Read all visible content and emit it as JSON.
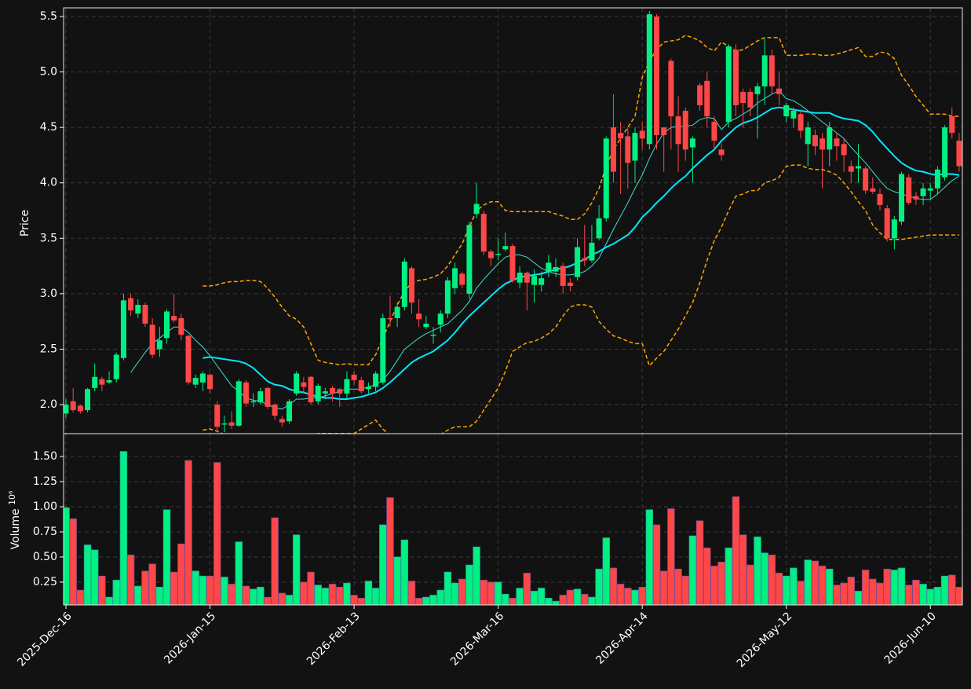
{
  "chart_data": {
    "type": "candlestick",
    "ylabel": "Price",
    "categories": [
      "2025-Dec-16",
      null,
      null,
      null,
      null,
      null,
      null,
      null,
      null,
      null,
      null,
      null,
      null,
      null,
      null,
      null,
      null,
      null,
      null,
      null,
      "2026-Jan-15",
      null,
      null,
      null,
      null,
      null,
      null,
      null,
      null,
      null,
      null,
      null,
      null,
      null,
      null,
      null,
      null,
      null,
      null,
      null,
      "2026-Feb-13",
      null,
      null,
      null,
      null,
      null,
      null,
      null,
      null,
      null,
      null,
      null,
      null,
      null,
      null,
      null,
      null,
      null,
      null,
      null,
      "2026-Mar-16",
      null,
      null,
      null,
      null,
      null,
      null,
      null,
      null,
      null,
      null,
      null,
      null,
      null,
      null,
      null,
      null,
      null,
      null,
      null,
      "2026-Apr-14",
      null,
      null,
      null,
      null,
      null,
      null,
      null,
      null,
      null,
      null,
      null,
      null,
      null,
      null,
      null,
      null,
      null,
      null,
      null,
      "2026-May-12",
      null,
      null,
      null,
      null,
      null,
      null,
      null,
      null,
      null,
      null,
      null,
      null,
      null,
      null,
      null,
      null,
      null,
      null,
      null,
      "2026-Jun-10",
      null,
      null,
      null,
      null
    ],
    "open": [
      1.92,
      2.03,
      1.99,
      1.95,
      2.15,
      2.23,
      2.2,
      2.23,
      2.42,
      2.96,
      2.82,
      2.9,
      2.72,
      2.5,
      2.6,
      2.8,
      2.78,
      2.62,
      2.18,
      2.2,
      2.27,
      2.0,
      1.82,
      1.84,
      1.81,
      2.2,
      2.02,
      2.02,
      2.15,
      2.0,
      1.87,
      1.85,
      2.1,
      2.2,
      2.25,
      2.03,
      2.1,
      2.15,
      2.14,
      2.1,
      2.27,
      2.22,
      2.14,
      2.16,
      2.2,
      2.78,
      2.78,
      2.88,
      3.23,
      2.82,
      2.7,
      2.62,
      2.72,
      2.82,
      3.05,
      3.18,
      3.0,
      3.72,
      3.72,
      3.38,
      3.35,
      3.4,
      3.43,
      3.1,
      3.19,
      3.08,
      3.08,
      3.2,
      3.2,
      3.25,
      3.1,
      3.15,
      3.32,
      3.3,
      3.5,
      3.68,
      4.5,
      4.45,
      4.42,
      4.2,
      4.47,
      4.35,
      5.5,
      4.5,
      5.1,
      4.6,
      4.65,
      4.32,
      4.88,
      4.92,
      4.55,
      4.3,
      4.55,
      5.2,
      4.82,
      4.82,
      4.8,
      4.87,
      5.15,
      4.85,
      4.6,
      4.58,
      4.62,
      4.35,
      4.43,
      4.4,
      4.3,
      4.4,
      4.35,
      4.15,
      4.13,
      4.13,
      3.95,
      3.9,
      3.77,
      3.5,
      3.65,
      4.05,
      3.88,
      3.88,
      3.93,
      3.95,
      4.05,
      4.6,
      4.38
    ],
    "high": [
      2.05,
      2.15,
      2.0,
      2.15,
      2.37,
      2.25,
      2.3,
      2.47,
      3.0,
      3.0,
      2.95,
      2.92,
      2.78,
      2.7,
      2.86,
      3.0,
      2.82,
      2.63,
      2.27,
      2.3,
      2.28,
      2.03,
      1.9,
      1.94,
      2.23,
      2.22,
      2.1,
      2.15,
      2.16,
      2.01,
      1.9,
      2.05,
      2.3,
      2.25,
      2.26,
      2.19,
      2.15,
      2.17,
      2.15,
      2.3,
      2.3,
      2.25,
      2.2,
      2.3,
      2.82,
      2.98,
      2.92,
      3.32,
      3.25,
      2.95,
      2.8,
      2.7,
      2.85,
      3.15,
      3.28,
      3.2,
      3.65,
      4.0,
      3.75,
      3.4,
      3.5,
      3.55,
      3.45,
      3.25,
      3.2,
      3.22,
      3.2,
      3.35,
      3.32,
      3.28,
      3.14,
      3.5,
      3.62,
      3.62,
      3.8,
      4.42,
      4.8,
      4.55,
      4.5,
      4.5,
      4.55,
      5.55,
      5.52,
      4.5,
      5.12,
      4.78,
      4.68,
      4.42,
      4.9,
      5.0,
      4.6,
      4.35,
      5.25,
      5.25,
      4.85,
      4.85,
      4.9,
      5.3,
      5.2,
      5.0,
      4.72,
      4.68,
      4.65,
      4.55,
      4.48,
      4.45,
      4.55,
      4.45,
      4.4,
      4.2,
      4.35,
      4.15,
      4.05,
      3.95,
      3.8,
      3.7,
      4.1,
      4.08,
      3.92,
      4.0,
      4.0,
      4.15,
      4.52,
      4.68,
      4.45
    ],
    "low": [
      1.88,
      1.93,
      1.92,
      1.93,
      2.12,
      2.12,
      2.19,
      2.2,
      2.4,
      2.8,
      2.78,
      2.7,
      2.42,
      2.43,
      2.55,
      2.74,
      2.58,
      2.18,
      2.15,
      2.12,
      2.1,
      1.75,
      1.75,
      1.78,
      1.8,
      1.98,
      1.98,
      2.0,
      1.96,
      1.86,
      1.8,
      1.83,
      2.08,
      2.1,
      2.0,
      2.0,
      2.05,
      2.03,
      1.98,
      2.05,
      2.18,
      2.1,
      2.1,
      2.12,
      2.18,
      2.7,
      2.7,
      2.85,
      2.82,
      2.7,
      2.68,
      2.55,
      2.65,
      2.78,
      3.0,
      3.05,
      2.95,
      3.68,
      3.35,
      3.25,
      3.3,
      3.38,
      3.1,
      3.05,
      2.85,
      2.92,
      3.02,
      3.15,
      3.15,
      3.0,
      3.02,
      3.12,
      3.25,
      3.28,
      3.48,
      3.65,
      4.0,
      3.9,
      3.95,
      4.0,
      4.3,
      4.3,
      4.3,
      4.1,
      4.3,
      4.1,
      4.2,
      4.0,
      4.65,
      4.5,
      4.3,
      4.2,
      4.5,
      4.6,
      4.5,
      4.6,
      4.4,
      4.7,
      4.8,
      4.7,
      4.55,
      4.5,
      4.4,
      4.15,
      4.25,
      3.95,
      4.15,
      4.2,
      4.1,
      4.0,
      4.0,
      3.9,
      3.9,
      3.75,
      3.47,
      3.4,
      3.62,
      3.8,
      3.8,
      3.8,
      3.85,
      3.9,
      4.02,
      4.4,
      4.1
    ],
    "close": [
      2.0,
      1.95,
      1.94,
      2.14,
      2.25,
      2.18,
      2.22,
      2.45,
      2.94,
      2.85,
      2.9,
      2.73,
      2.45,
      2.58,
      2.84,
      2.76,
      2.63,
      2.2,
      2.24,
      2.28,
      2.14,
      1.8,
      1.83,
      1.81,
      2.21,
      2.01,
      2.03,
      2.12,
      1.98,
      1.9,
      1.84,
      2.03,
      2.28,
      2.16,
      2.02,
      2.17,
      2.12,
      2.1,
      2.1,
      2.23,
      2.22,
      2.12,
      2.16,
      2.28,
      2.78,
      2.77,
      2.88,
      3.29,
      2.92,
      2.77,
      2.73,
      2.63,
      2.82,
      3.12,
      3.23,
      3.08,
      3.62,
      3.81,
      3.38,
      3.32,
      3.36,
      3.43,
      3.12,
      3.19,
      3.1,
      3.16,
      3.14,
      3.28,
      3.24,
      3.07,
      3.07,
      3.42,
      3.3,
      3.46,
      3.68,
      4.4,
      4.1,
      4.4,
      4.18,
      4.45,
      4.4,
      5.52,
      4.43,
      4.43,
      4.6,
      4.35,
      4.3,
      4.4,
      4.7,
      4.6,
      4.38,
      4.25,
      5.23,
      4.7,
      4.72,
      4.68,
      4.87,
      5.15,
      4.87,
      4.8,
      4.7,
      4.65,
      4.47,
      4.5,
      4.33,
      4.3,
      4.5,
      4.33,
      4.25,
      4.1,
      4.15,
      3.93,
      3.92,
      3.8,
      3.5,
      3.67,
      4.08,
      3.82,
      3.85,
      3.95,
      3.95,
      4.12,
      4.5,
      4.45,
      4.15
    ],
    "up_color": "#00f082",
    "down_color": "#ff4747",
    "ylim": [
      1.738,
      5.578
    ],
    "yticks": [
      {
        "value": 2,
        "label": "2.0"
      },
      2.5,
      {
        "value": 3,
        "label": "3.0"
      },
      3.5,
      {
        "value": 4,
        "label": "4.0"
      },
      4.5,
      {
        "value": 5,
        "label": "5.0"
      },
      5.5
    ],
    "grid": true,
    "overlays": [
      {
        "color": "#40e0d0",
        "width": 1,
        "dashed": false,
        "values": [
          null,
          null,
          null,
          null,
          null,
          null,
          null,
          null,
          null,
          2.29,
          2.38,
          2.47,
          2.55,
          2.6,
          2.65,
          2.7,
          2.7,
          2.65,
          2.58,
          2.52,
          2.44,
          2.35,
          2.26,
          2.17,
          2.12,
          2.06,
          2.04,
          2.03,
          2.0,
          1.97,
          1.96,
          2.0,
          2.05,
          2.05,
          2.06,
          2.06,
          2.08,
          2.1,
          2.12,
          2.14,
          2.14,
          2.14,
          2.16,
          2.18,
          2.22,
          2.3,
          2.4,
          2.5,
          2.55,
          2.6,
          2.64,
          2.67,
          2.7,
          2.73,
          2.79,
          2.85,
          2.93,
          3.05,
          3.13,
          3.2,
          3.27,
          3.33,
          3.35,
          3.35,
          3.33,
          3.28,
          3.23,
          3.2,
          3.18,
          3.17,
          3.17,
          3.18,
          3.2,
          3.25,
          3.32,
          3.45,
          3.58,
          3.7,
          3.82,
          3.95,
          4.07,
          4.22,
          4.35,
          4.45,
          4.5,
          4.51,
          4.51,
          4.52,
          4.57,
          4.59,
          4.58,
          4.48,
          4.55,
          4.58,
          4.62,
          4.66,
          4.72,
          4.76,
          4.8,
          4.83,
          4.76,
          4.74,
          4.7,
          4.65,
          4.6,
          4.55,
          4.5,
          4.45,
          4.4,
          4.32,
          4.25,
          4.18,
          4.1,
          4.02,
          3.95,
          3.92,
          3.9,
          3.88,
          3.86,
          3.85,
          3.85,
          3.9,
          3.96,
          4.02,
          4.06
        ]
      },
      {
        "color": "#00e8ff",
        "width": 2,
        "dashed": false,
        "values": [
          null,
          null,
          null,
          null,
          null,
          null,
          null,
          null,
          null,
          null,
          null,
          null,
          null,
          null,
          null,
          null,
          null,
          null,
          null,
          2.42,
          2.43,
          2.42,
          2.41,
          2.4,
          2.39,
          2.37,
          2.33,
          2.27,
          2.21,
          2.18,
          2.17,
          2.14,
          2.12,
          2.11,
          2.09,
          2.07,
          2.06,
          2.06,
          2.05,
          2.05,
          2.06,
          2.07,
          2.09,
          2.11,
          2.15,
          2.2,
          2.26,
          2.32,
          2.38,
          2.42,
          2.45,
          2.48,
          2.53,
          2.58,
          2.65,
          2.73,
          2.8,
          2.86,
          2.92,
          2.98,
          3.04,
          3.09,
          3.12,
          3.15,
          3.16,
          3.17,
          3.18,
          3.2,
          3.22,
          3.23,
          3.25,
          3.28,
          3.31,
          3.35,
          3.38,
          3.42,
          3.45,
          3.49,
          3.53,
          3.6,
          3.69,
          3.75,
          3.82,
          3.88,
          3.95,
          4.01,
          4.06,
          4.13,
          4.19,
          4.25,
          4.3,
          4.38,
          4.44,
          4.5,
          4.54,
          4.56,
          4.59,
          4.63,
          4.67,
          4.68,
          4.67,
          4.66,
          4.65,
          4.64,
          4.63,
          4.63,
          4.63,
          4.6,
          4.58,
          4.57,
          4.56,
          4.52,
          4.46,
          4.38,
          4.31,
          4.24,
          4.18,
          4.14,
          4.11,
          4.1,
          4.08,
          4.07,
          4.08,
          4.08,
          4.07
        ]
      },
      {
        "color": "#ffa500",
        "width": 1.5,
        "dashed": true,
        "values": [
          null,
          null,
          null,
          null,
          null,
          null,
          null,
          null,
          null,
          null,
          null,
          null,
          null,
          null,
          null,
          null,
          null,
          null,
          null,
          3.07,
          3.07,
          3.08,
          3.1,
          3.11,
          3.11,
          3.12,
          3.12,
          3.11,
          3.05,
          2.97,
          2.88,
          2.8,
          2.77,
          2.7,
          2.55,
          2.4,
          2.38,
          2.37,
          2.36,
          2.37,
          2.36,
          2.36,
          2.36,
          2.45,
          2.6,
          2.75,
          2.9,
          3.02,
          3.1,
          3.12,
          3.13,
          3.15,
          3.18,
          3.25,
          3.35,
          3.45,
          3.6,
          3.75,
          3.8,
          3.83,
          3.83,
          3.75,
          3.74,
          3.74,
          3.74,
          3.74,
          3.74,
          3.74,
          3.72,
          3.7,
          3.67,
          3.67,
          3.72,
          3.82,
          3.95,
          4.15,
          4.3,
          4.4,
          4.5,
          4.6,
          4.95,
          5.1,
          5.2,
          5.27,
          5.28,
          5.29,
          5.33,
          5.31,
          5.28,
          5.22,
          5.19,
          5.27,
          5.23,
          5.19,
          5.2,
          5.24,
          5.28,
          5.31,
          5.31,
          5.31,
          5.15,
          5.15,
          5.15,
          5.16,
          5.16,
          5.15,
          5.15,
          5.16,
          5.18,
          5.2,
          5.22,
          5.14,
          5.14,
          5.18,
          5.17,
          5.12,
          4.97,
          4.88,
          4.78,
          4.7,
          4.62,
          4.62,
          4.62,
          4.6,
          4.6
        ]
      },
      {
        "color": "#ffa500",
        "width": 1.5,
        "dashed": true,
        "values": [
          null,
          null,
          null,
          null,
          null,
          null,
          null,
          null,
          null,
          null,
          null,
          null,
          null,
          null,
          null,
          null,
          null,
          null,
          null,
          1.77,
          1.78,
          1.76,
          1.73,
          1.7,
          1.67,
          1.65,
          1.63,
          1.62,
          1.6,
          1.6,
          1.62,
          1.64,
          1.66,
          1.7,
          1.72,
          1.74,
          1.74,
          1.74,
          1.74,
          1.74,
          1.74,
          1.78,
          1.82,
          1.86,
          1.78,
          1.72,
          1.7,
          1.68,
          1.66,
          1.68,
          1.72,
          1.74,
          1.73,
          1.77,
          1.8,
          1.8,
          1.8,
          1.85,
          1.95,
          2.05,
          2.15,
          2.3,
          2.48,
          2.52,
          2.56,
          2.57,
          2.6,
          2.64,
          2.7,
          2.8,
          2.88,
          2.9,
          2.9,
          2.88,
          2.75,
          2.68,
          2.62,
          2.6,
          2.57,
          2.55,
          2.55,
          2.35,
          2.42,
          2.48,
          2.58,
          2.68,
          2.8,
          2.92,
          3.1,
          3.3,
          3.48,
          3.6,
          3.75,
          3.88,
          3.9,
          3.93,
          3.93,
          4.0,
          4.02,
          4.05,
          4.15,
          4.16,
          4.16,
          4.13,
          4.12,
          4.12,
          4.1,
          4.07,
          4.0,
          3.92,
          3.83,
          3.75,
          3.62,
          3.55,
          3.49,
          3.49,
          3.49,
          3.5,
          3.51,
          3.52,
          3.53,
          3.53,
          3.53,
          3.53,
          3.53
        ]
      }
    ],
    "volume": {
      "ylabel": "Volume",
      "offset_text": "10⁶",
      "values": [
        0.99,
        0.88,
        0.17,
        0.62,
        0.57,
        0.31,
        0.1,
        0.27,
        1.55,
        0.52,
        0.21,
        0.36,
        0.43,
        0.2,
        0.97,
        0.35,
        0.63,
        1.46,
        0.36,
        0.31,
        0.31,
        1.44,
        0.3,
        0.23,
        0.65,
        0.21,
        0.18,
        0.2,
        0.1,
        0.89,
        0.14,
        0.12,
        0.72,
        0.25,
        0.35,
        0.22,
        0.19,
        0.23,
        0.2,
        0.24,
        0.12,
        0.09,
        0.26,
        0.19,
        0.82,
        1.09,
        0.5,
        0.67,
        0.26,
        0.09,
        0.1,
        0.12,
        0.17,
        0.35,
        0.24,
        0.28,
        0.42,
        0.6,
        0.27,
        0.25,
        0.25,
        0.13,
        0.09,
        0.19,
        0.34,
        0.16,
        0.19,
        0.09,
        0.06,
        0.12,
        0.17,
        0.18,
        0.13,
        0.1,
        0.38,
        0.69,
        0.39,
        0.23,
        0.19,
        0.17,
        0.2,
        0.97,
        0.82,
        0.36,
        0.98,
        0.38,
        0.31,
        0.71,
        0.86,
        0.59,
        0.41,
        0.45,
        0.59,
        1.1,
        0.72,
        0.42,
        0.7,
        0.54,
        0.52,
        0.34,
        0.31,
        0.39,
        0.26,
        0.47,
        0.46,
        0.41,
        0.38,
        0.22,
        0.24,
        0.3,
        0.16,
        0.37,
        0.28,
        0.24,
        0.38,
        0.37,
        0.39,
        0.22,
        0.27,
        0.23,
        0.18,
        0.2,
        0.31,
        0.32,
        0.2
      ],
      "ylim": [
        0.023,
        1.727
      ],
      "yticks": [
        0.25,
        {
          "value": 0.5,
          "label": "0.50"
        },
        0.75,
        {
          "value": 1,
          "label": "1.00"
        },
        1.25,
        {
          "value": 1.5,
          "label": "1.50"
        }
      ]
    }
  }
}
